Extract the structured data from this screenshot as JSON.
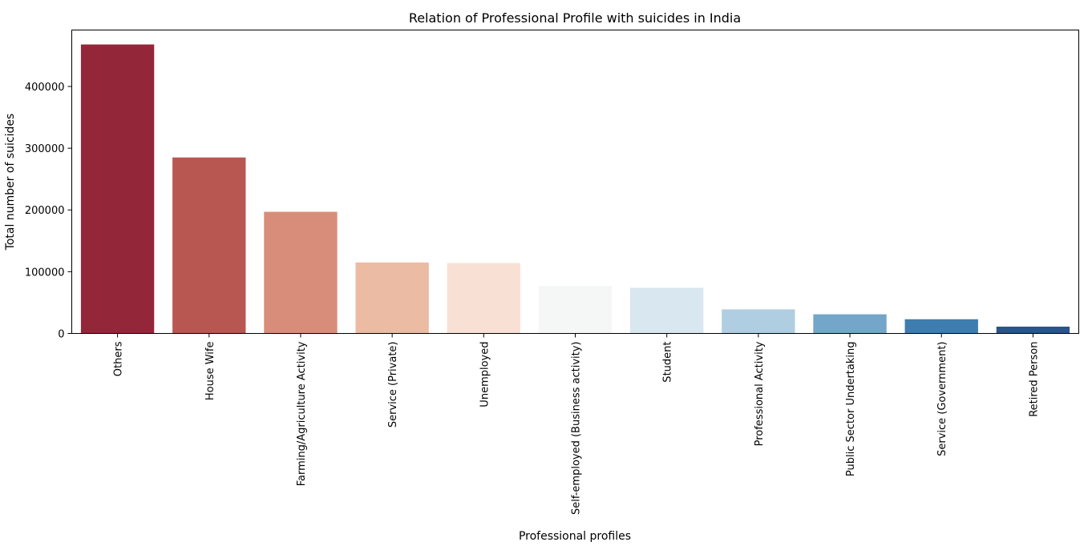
{
  "chart_data": {
    "type": "bar",
    "title": "Relation of Professional Profile with suicides in India",
    "xlabel": "Professional profiles",
    "ylabel": "Total number of suicides",
    "categories": [
      "Others",
      "House Wife",
      "Farming/Agriculture Activity",
      "Service (Private)",
      "Unemployed",
      "Self-employed (Business activity)",
      "Student",
      "Professional Activity",
      "Public Sector Undertaking",
      "Service (Government)",
      "Retired Person"
    ],
    "values": [
      468000,
      285000,
      197000,
      115000,
      114000,
      77000,
      74000,
      39000,
      31000,
      23000,
      11000
    ],
    "colors": [
      "#942639",
      "#b85752",
      "#d78d79",
      "#ecbba3",
      "#f8e1d4",
      "#f5f6f6",
      "#d9e7f0",
      "#b0cee2",
      "#73a6c9",
      "#3e7db0",
      "#295587"
    ],
    "ylim": [
      0,
      491400
    ],
    "yticks": [
      0,
      100000,
      200000,
      300000,
      400000
    ],
    "ytick_labels": [
      "0",
      "100000",
      "200000",
      "300000",
      "400000"
    ],
    "grid": false,
    "legend": "none"
  }
}
